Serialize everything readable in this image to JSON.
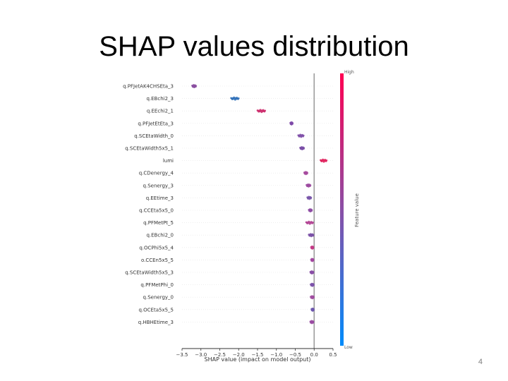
{
  "slide": {
    "title": "SHAP values distribution",
    "page_number": "4"
  },
  "chart_data": {
    "type": "scatter",
    "title": "",
    "xlabel": "SHAP value (impact on model output)",
    "xlim": [
      -3.5,
      0.5
    ],
    "x_ticks": [
      -3.5,
      -3.0,
      -2.5,
      -2.0,
      -1.5,
      -1.0,
      -0.5,
      0.0,
      0.5
    ],
    "x_tick_labels": [
      "−3.5",
      "−3.0",
      "−2.5",
      "−2.0",
      "−1.5",
      "−1.0",
      "−0.5",
      "0.0",
      "0.5"
    ],
    "colorbar": {
      "label": "Feature value",
      "high_label": "High",
      "low_label": "Low",
      "high_color": "#ff0052",
      "low_color": "#008bfb"
    },
    "features": [
      {
        "name": "q.PFJetAK4CHSEta_3",
        "center": -3.18,
        "spread": 0.05,
        "color": "#8a4fa0"
      },
      {
        "name": "q.EBchi2_3",
        "center": -2.1,
        "spread": 0.1,
        "color": "#2f6fb8"
      },
      {
        "name": "q.EEchi2_1",
        "center": -1.4,
        "spread": 0.1,
        "color": "#cc2a6a"
      },
      {
        "name": "q.PFJetEtEta_3",
        "center": -0.6,
        "spread": 0.03,
        "color": "#7e4aa8"
      },
      {
        "name": "q.SCEtaWidth_0",
        "center": -0.35,
        "spread": 0.07,
        "color": "#8050a8"
      },
      {
        "name": "q.SCEtaWidth5x5_1",
        "center": -0.32,
        "spread": 0.05,
        "color": "#7a4ea6"
      },
      {
        "name": "lumi",
        "center": 0.25,
        "spread": 0.08,
        "color": "#e0245e"
      },
      {
        "name": "q.CDenergy_4",
        "center": -0.22,
        "spread": 0.04,
        "color": "#a64b9e"
      },
      {
        "name": "q.Senergy_3",
        "center": -0.15,
        "spread": 0.05,
        "color": "#9c4aa0"
      },
      {
        "name": "q.EEtime_3",
        "center": -0.13,
        "spread": 0.05,
        "color": "#7a56aa"
      },
      {
        "name": "q.CCEta5x5_0",
        "center": -0.1,
        "spread": 0.04,
        "color": "#8e4ca4"
      },
      {
        "name": "q.PFMetPt_5",
        "center": -0.12,
        "spread": 0.09,
        "color": "#b34494"
      },
      {
        "name": "q.EBchi2_0",
        "center": -0.08,
        "spread": 0.06,
        "color": "#7a50a6"
      },
      {
        "name": "q.OCPhi5x5_4",
        "center": -0.05,
        "spread": 0.03,
        "color": "#c43a86"
      },
      {
        "name": "o.CCEn5x5_5",
        "center": -0.05,
        "spread": 0.03,
        "color": "#a346a0"
      },
      {
        "name": "q.SCEtaWidth5x5_3",
        "center": -0.06,
        "spread": 0.04,
        "color": "#8a4ea6"
      },
      {
        "name": "q.PFMetPhi_0",
        "center": -0.05,
        "spread": 0.04,
        "color": "#7c52aa"
      },
      {
        "name": "q.Senergy_0",
        "center": -0.05,
        "spread": 0.04,
        "color": "#a04ca0"
      },
      {
        "name": "q.OCEta5x5_5",
        "center": -0.04,
        "spread": 0.03,
        "color": "#6e58ae"
      },
      {
        "name": "q.HBHEtime_3",
        "center": -0.06,
        "spread": 0.04,
        "color": "#9a4aa2"
      }
    ]
  }
}
